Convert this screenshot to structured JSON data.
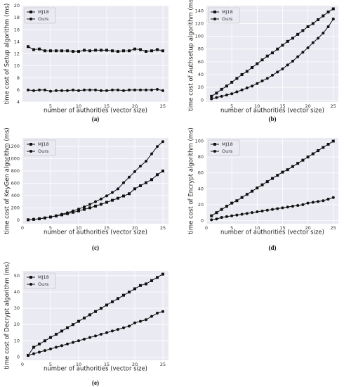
{
  "chart_data": [
    {
      "type": "line",
      "caption": "(a)",
      "xlabel": "number of authorities (vector size)",
      "ylabel": "time cost of Setup algorithm (ms)",
      "x": [
        1,
        2,
        3,
        4,
        5,
        6,
        7,
        8,
        9,
        10,
        11,
        12,
        13,
        14,
        15,
        16,
        17,
        18,
        19,
        20,
        21,
        22,
        23,
        24,
        25
      ],
      "xlim": [
        0,
        26
      ],
      "xticks": [
        5,
        10,
        15,
        20,
        25
      ],
      "ylim": [
        4,
        20
      ],
      "yticks": [
        4,
        6,
        8,
        10,
        12,
        14,
        16,
        18,
        20
      ],
      "grid": true,
      "legend": "upper left",
      "series": [
        {
          "name": "MJ18",
          "color": "#111111",
          "marker": "square",
          "values": [
            13.2,
            12.7,
            12.8,
            12.5,
            12.5,
            12.5,
            12.5,
            12.5,
            12.4,
            12.4,
            12.6,
            12.5,
            12.6,
            12.6,
            12.6,
            12.5,
            12.4,
            12.5,
            12.5,
            12.8,
            12.7,
            12.4,
            12.5,
            12.7,
            12.5
          ]
        },
        {
          "name": "Ours",
          "color": "#111111",
          "marker": "circle",
          "values": [
            6.0,
            5.9,
            6.0,
            6.0,
            5.8,
            5.9,
            5.9,
            5.9,
            6.0,
            5.9,
            6.0,
            6.0,
            6.0,
            5.9,
            5.9,
            6.0,
            6.0,
            5.9,
            6.0,
            6.0,
            6.0,
            6.0,
            6.0,
            6.1,
            5.9
          ]
        }
      ]
    },
    {
      "type": "line",
      "caption": "(b)",
      "xlabel": "number of authorities (vector size)",
      "ylabel": "time cost of Authsetup algorithm (ms)",
      "x": [
        1,
        2,
        3,
        4,
        5,
        6,
        7,
        8,
        9,
        10,
        11,
        12,
        13,
        14,
        15,
        16,
        17,
        18,
        19,
        20,
        21,
        22,
        23,
        24,
        25
      ],
      "xlim": [
        0,
        26
      ],
      "xticks": [
        5,
        10,
        15,
        20,
        25
      ],
      "ylim": [
        -3,
        148
      ],
      "yticks": [
        0,
        20,
        40,
        60,
        80,
        100,
        120,
        140
      ],
      "grid": true,
      "legend": "upper left",
      "series": [
        {
          "name": "MJ18",
          "color": "#111111",
          "marker": "square",
          "values": [
            6,
            11,
            17,
            22,
            28,
            34,
            40,
            45,
            51,
            57,
            63,
            69,
            74,
            80,
            86,
            92,
            97,
            103,
            109,
            115,
            120,
            126,
            132,
            138,
            143
          ]
        },
        {
          "name": "Ours",
          "color": "#111111",
          "marker": "circle",
          "values": [
            2,
            4,
            6,
            8,
            10,
            13,
            16,
            19,
            22,
            26,
            30,
            34,
            39,
            44,
            49,
            55,
            61,
            68,
            75,
            82,
            90,
            97,
            105,
            115,
            127
          ]
        }
      ]
    },
    {
      "type": "line",
      "caption": "(c)",
      "xlabel": "number of authorities (vector size)",
      "ylabel": "time cost of KeyGen algorithm (ms)",
      "x": [
        1,
        2,
        3,
        4,
        5,
        6,
        7,
        8,
        9,
        10,
        11,
        12,
        13,
        14,
        15,
        16,
        17,
        18,
        19,
        20,
        21,
        22,
        23,
        24,
        25
      ],
      "xlim": [
        0,
        26
      ],
      "xticks": [
        0,
        5,
        10,
        15,
        20,
        25
      ],
      "ylim": [
        -60,
        1340
      ],
      "yticks": [
        0,
        200,
        400,
        600,
        800,
        1000,
        1200
      ],
      "grid": true,
      "legend": "upper left",
      "series": [
        {
          "name": "MJ18",
          "color": "#111111",
          "marker": "square",
          "values": [
            5,
            12,
            22,
            35,
            50,
            67,
            85,
            105,
            127,
            150,
            175,
            200,
            228,
            258,
            290,
            323,
            357,
            393,
            430,
            510,
            560,
            610,
            660,
            740,
            800
          ]
        },
        {
          "name": "Ours",
          "color": "#111111",
          "marker": "circle",
          "values": [
            5,
            10,
            20,
            35,
            50,
            70,
            95,
            120,
            150,
            180,
            215,
            255,
            300,
            345,
            395,
            450,
            510,
            610,
            700,
            790,
            880,
            960,
            1080,
            1200,
            1280
          ]
        }
      ]
    },
    {
      "type": "line",
      "caption": "(d)",
      "xlabel": "number of authorities (vector size)",
      "ylabel": "time cost of Encrypt algorithm (ms)",
      "x": [
        1,
        2,
        3,
        4,
        5,
        6,
        7,
        8,
        9,
        10,
        11,
        12,
        13,
        14,
        15,
        16,
        17,
        18,
        19,
        20,
        21,
        22,
        23,
        24,
        25
      ],
      "xlim": [
        0,
        26
      ],
      "xticks": [
        0,
        5,
        10,
        15,
        20,
        25
      ],
      "ylim": [
        -4,
        104
      ],
      "yticks": [
        0,
        20,
        40,
        60,
        80,
        100
      ],
      "grid": true,
      "legend": "upper left",
      "series": [
        {
          "name": "MJ18",
          "color": "#111111",
          "marker": "square",
          "values": [
            6,
            10,
            14,
            18,
            22,
            25,
            29,
            33,
            37,
            41,
            45,
            49,
            53,
            57,
            61,
            64,
            68,
            72,
            76,
            80,
            84,
            88,
            92,
            96,
            100
          ]
        },
        {
          "name": "Ours",
          "color": "#111111",
          "marker": "circle",
          "values": [
            1,
            2,
            4,
            5,
            6,
            7,
            8,
            9,
            10,
            11,
            12,
            13,
            14,
            15,
            16,
            17,
            18,
            19,
            20,
            22,
            23,
            24,
            25,
            27,
            29
          ]
        }
      ]
    },
    {
      "type": "line",
      "caption": "(e)",
      "xlabel": "number of authorities (vector size)",
      "ylabel": "time cost of Decrypt algorithm (ms)",
      "x": [
        1,
        2,
        3,
        4,
        5,
        6,
        7,
        8,
        9,
        10,
        11,
        12,
        13,
        14,
        15,
        16,
        17,
        18,
        19,
        20,
        21,
        22,
        23,
        24,
        25
      ],
      "xlim": [
        0,
        26
      ],
      "xticks": [
        0,
        5,
        10,
        15,
        20,
        25
      ],
      "ylim": [
        -2,
        53
      ],
      "yticks": [
        0,
        10,
        20,
        30,
        40,
        50
      ],
      "grid": true,
      "legend": "upper left",
      "series": [
        {
          "name": "MJ18",
          "color": "#111111",
          "marker": "square",
          "values": [
            1,
            6,
            8,
            10,
            12,
            14,
            16,
            18,
            20,
            22,
            24,
            26,
            28,
            30,
            32,
            34,
            36,
            38,
            40,
            42,
            44,
            45,
            47,
            49,
            51
          ]
        },
        {
          "name": "Ours",
          "color": "#111111",
          "marker": "circle",
          "values": [
            1,
            2,
            3,
            4,
            5,
            6,
            7,
            8,
            9,
            10,
            11,
            12,
            13,
            14,
            15,
            16,
            17,
            18,
            19,
            21,
            22,
            23,
            25,
            27,
            28
          ]
        }
      ]
    }
  ]
}
